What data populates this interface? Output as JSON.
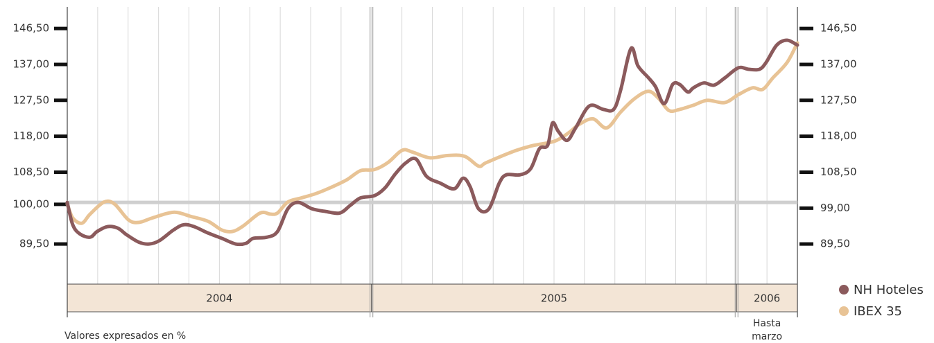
{
  "chart_data": {
    "type": "line",
    "series": [
      {
        "name": "NH Hoteles",
        "color": "#8b5a5c",
        "x": [
          0.0,
          0.18,
          0.41,
          0.75,
          0.98,
          1.32,
          1.66,
          1.96,
          2.35,
          2.69,
          3.03,
          3.49,
          3.83,
          4.17,
          4.63,
          5.08,
          5.54,
          5.88,
          6.11,
          6.56,
          6.91,
          7.25,
          7.59,
          8.05,
          8.5,
          8.96,
          9.3,
          9.64,
          10.1,
          10.44,
          10.78,
          11.12,
          11.46,
          11.81,
          12.26,
          12.72,
          13.01,
          13.24,
          13.52,
          13.86,
          14.2,
          14.43,
          14.88,
          15.23,
          15.52,
          15.79,
          15.95,
          16.14,
          16.43,
          16.71,
          17.16,
          17.62,
          17.96,
          18.19,
          18.53,
          18.76,
          19.1,
          19.33,
          19.62,
          19.9,
          20.13,
          20.4,
          20.58,
          20.92,
          21.26,
          21.61,
          22.06,
          22.4,
          22.75,
          22.97,
          23.32,
          23.66,
          24.0
        ],
        "values": [
          100.5,
          94.6,
          92.2,
          91.3,
          92.8,
          94.1,
          93.7,
          91.9,
          90.0,
          89.5,
          90.4,
          93.2,
          94.6,
          94.1,
          92.4,
          91.0,
          89.5,
          89.7,
          91.0,
          91.3,
          92.8,
          98.8,
          100.5,
          98.8,
          98.1,
          97.7,
          99.7,
          101.7,
          102.3,
          104.3,
          108.0,
          110.9,
          112.0,
          107.4,
          105.6,
          104.1,
          106.9,
          104.7,
          98.8,
          98.8,
          105.6,
          107.8,
          107.8,
          109.4,
          114.7,
          115.6,
          121.5,
          119.3,
          116.9,
          120.2,
          126.0,
          125.1,
          125.1,
          130.2,
          141.2,
          136.6,
          133.5,
          131.2,
          126.6,
          131.7,
          131.7,
          129.7,
          130.8,
          132.1,
          131.5,
          133.4,
          136.1,
          135.7,
          135.7,
          137.5,
          142.1,
          143.4,
          142.1
        ]
      },
      {
        "name": "IBEX 35",
        "color": "#e8c395",
        "x": [
          0.0,
          0.18,
          0.48,
          0.75,
          1.21,
          1.55,
          2.01,
          2.35,
          2.8,
          3.49,
          4.06,
          4.63,
          5.08,
          5.42,
          5.77,
          6.34,
          6.68,
          6.91,
          7.25,
          7.7,
          8.16,
          8.62,
          9.19,
          9.64,
          10.1,
          10.55,
          11.01,
          11.35,
          11.92,
          12.49,
          13.06,
          13.52,
          13.74,
          14.2,
          14.77,
          15.34,
          16.02,
          16.48,
          16.82,
          17.28,
          17.73,
          18.19,
          18.64,
          19.1,
          19.44,
          19.78,
          20.13,
          20.58,
          21.04,
          21.61,
          22.06,
          22.52,
          22.86,
          23.2,
          23.66,
          24.0
        ],
        "values": [
          100.1,
          96.4,
          95.0,
          97.4,
          100.6,
          100.1,
          95.9,
          95.2,
          96.4,
          97.9,
          96.8,
          95.5,
          93.2,
          92.8,
          94.2,
          97.7,
          97.4,
          97.7,
          100.6,
          101.7,
          102.8,
          104.3,
          106.5,
          108.9,
          109.2,
          111.1,
          114.3,
          113.8,
          112.3,
          112.9,
          112.7,
          110.1,
          110.9,
          112.5,
          114.3,
          115.6,
          116.7,
          118.9,
          121.1,
          122.6,
          120.2,
          124.4,
          127.9,
          129.9,
          128.0,
          124.8,
          125.1,
          126.2,
          127.5,
          126.9,
          129.0,
          130.8,
          130.4,
          133.5,
          137.5,
          142.7
        ]
      }
    ],
    "xlim": [
      0,
      24
    ],
    "xticks": [
      0,
      1,
      2,
      3,
      4,
      5,
      6,
      7,
      8,
      9,
      10,
      11,
      12,
      13,
      14,
      15,
      16,
      17,
      18,
      19,
      20,
      21,
      22,
      23,
      24
    ],
    "ylim": [
      78.9,
      152.2
    ],
    "yticks": [
      {
        "value": 146.5,
        "label": "146,50"
      },
      {
        "value": 137,
        "label": "137,00"
      },
      {
        "value": 127.5,
        "label": "127,50"
      },
      {
        "value": 118,
        "label": "118,00"
      },
      {
        "value": 108.5,
        "label": "108,50"
      },
      {
        "value": 100,
        "label": "100,00"
      },
      {
        "value": 89.5,
        "label": "89,50"
      }
    ],
    "y2lim": [
      78.9,
      152.2
    ],
    "y2ticks": [
      {
        "value": 146.5,
        "label": "146,50"
      },
      {
        "value": 137,
        "label": "137,00"
      },
      {
        "value": 127.5,
        "label": "127,50"
      },
      {
        "value": 118,
        "label": "118,00"
      },
      {
        "value": 108.5,
        "label": "108,50"
      },
      {
        "value": 99,
        "label": "99,00"
      },
      {
        "value": 89.5,
        "label": "89,50"
      }
    ],
    "reference_line": 100.5,
    "periods": [
      {
        "label": "2004",
        "from": 0,
        "to": 10
      },
      {
        "label": "2005",
        "from": 10,
        "to": 22
      },
      {
        "label": "2006",
        "from": 22,
        "to": 24
      }
    ],
    "period_note": [
      "Hasta",
      "marzo"
    ],
    "footnote": "Valores expresados en %",
    "grid": true,
    "legend": "bottom-right"
  }
}
